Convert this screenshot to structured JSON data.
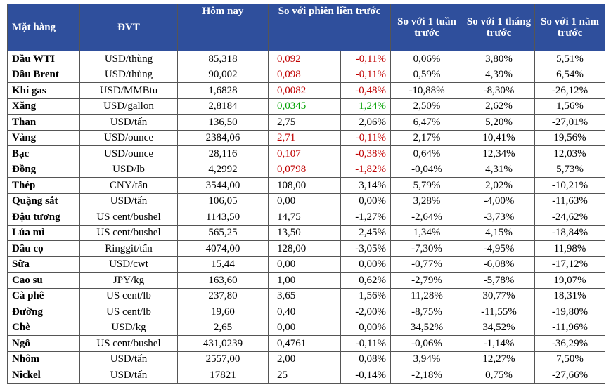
{
  "table": {
    "header": [
      "Mặt hàng",
      "ĐVT",
      "Hôm nay",
      "So với phiên liền trước",
      "So với 1 tuần trước",
      "So với 1 tháng trước",
      "So với 1 năm trước"
    ],
    "rows": [
      [
        "Dầu WTI",
        "USD/thùng",
        "85,318",
        "0,092",
        "-0,11%",
        "0,06%",
        "3,80%",
        "5,51%"
      ],
      [
        "Dầu Brent",
        "USD/thùng",
        "90,002",
        "0,098",
        "-0,11%",
        "0,59%",
        "4,39%",
        "6,54%"
      ],
      [
        "Khí gas",
        "USD/MMBtu",
        "1,6828",
        "0,0082",
        "-0,48%",
        "-10,88%",
        "-8,30%",
        "-26,12%"
      ],
      [
        "Xăng",
        "USD/gallon",
        "2,8184",
        "0,0345",
        "1,24%",
        "2,50%",
        "2,62%",
        "1,56%"
      ],
      [
        "Than",
        "USD/tấn",
        "136,50",
        "2,75",
        "2,06%",
        "6,47%",
        "5,20%",
        "-27,01%"
      ],
      [
        "Vàng",
        "USD/ounce",
        "2384,06",
        "2,71",
        "-0,11%",
        "2,17%",
        "10,41%",
        "19,56%"
      ],
      [
        "Bạc",
        "USD/ounce",
        "28,116",
        "0,107",
        "-0,38%",
        "0,64%",
        "12,34%",
        "12,03%"
      ],
      [
        "Đồng",
        "USD/lb",
        "4,2992",
        "0,0798",
        "-1,82%",
        "-0,04%",
        "4,31%",
        "5,73%"
      ],
      [
        "Thép",
        "CNY/tấn",
        "3544,00",
        "108,00",
        "3,14%",
        "5,79%",
        "2,02%",
        "-10,21%"
      ],
      [
        "Quặng sắt",
        "USD/tấn",
        "106,05",
        "0,00",
        "0,00%",
        "3,28%",
        "-4,00%",
        "-11,63%"
      ],
      [
        "Đậu tương",
        "US cent/bushel",
        "1143,50",
        "14,75",
        "-1,27%",
        "-2,64%",
        "-3,73%",
        "-24,62%"
      ],
      [
        "Lúa mì",
        "US cent/bushel",
        "565,25",
        "13,50",
        "2,45%",
        "1,34%",
        "4,15%",
        "-18,84%"
      ],
      [
        "Dầu cọ",
        "Ringgit/tấn",
        "4074,00",
        "128,00",
        "-3,05%",
        "-7,30%",
        "-4,95%",
        "11,98%"
      ],
      [
        "Sữa",
        "USD/cwt",
        "15,44",
        "0,00",
        "0,00%",
        "-0,77%",
        "-6,08%",
        "-17,12%"
      ],
      [
        "Cao su",
        "JPY/kg",
        "163,60",
        "1,00",
        "0,62%",
        "-2,79%",
        "-5,78%",
        "19,07%"
      ],
      [
        "Cà phê",
        "US cent/lb",
        "237,80",
        "3,65",
        "1,56%",
        "11,28%",
        "30,77%",
        "18,31%"
      ],
      [
        "Đường",
        "US cent/lb",
        "19,60",
        "0,40",
        "-2,00%",
        "-8,75%",
        "-11,55%",
        "-19,80%"
      ],
      [
        "Chè",
        "USD/kg",
        "2,65",
        "0,00",
        "0,00%",
        "34,52%",
        "34,52%",
        "-11,96%"
      ],
      [
        "Ngô",
        "US cent/bushel",
        "431,0239",
        "0,4761",
        "-0,11%",
        "-0,06%",
        "-1,14%",
        "-36,29%"
      ],
      [
        "Nhôm",
        "USD/tấn",
        "2557,00",
        "2,00",
        "0,08%",
        "3,94%",
        "12,27%",
        "7,50%"
      ],
      [
        "Nickel",
        "USD/tấn",
        "17821",
        "25",
        "-0,14%",
        "-2,18%",
        "0,75%",
        "-27,66%"
      ]
    ]
  }
}
